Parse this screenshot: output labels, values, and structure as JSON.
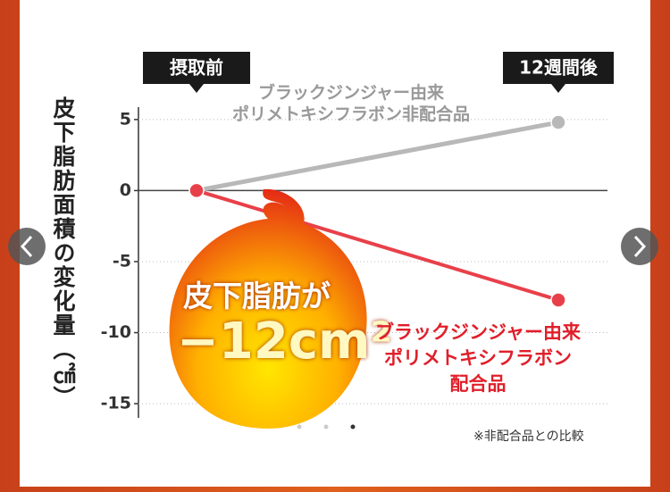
{
  "chart_data": {
    "type": "line",
    "y_axis_label": "皮下脂肪面積の変化量（㎠）",
    "categories": [
      "摂取前",
      "12週間後"
    ],
    "series": [
      {
        "name": "ブラックジンジャー由来\nポリメトキシフラボン非配合品",
        "color": "#b8b8b8",
        "values": [
          0,
          4.8
        ]
      },
      {
        "name": "ブラックジンジャー由来\nポリメトキシフラボン\n配合品",
        "color": "#e8404a",
        "values": [
          0,
          -7.7
        ]
      }
    ],
    "ylim": [
      -16,
      6.5
    ],
    "yticks": [
      5,
      0,
      -5,
      -10,
      -15
    ],
    "grid": true,
    "annotations": [
      "皮下脂肪が",
      "−12cm²"
    ],
    "footnote": "※非配合品との比較"
  }
}
